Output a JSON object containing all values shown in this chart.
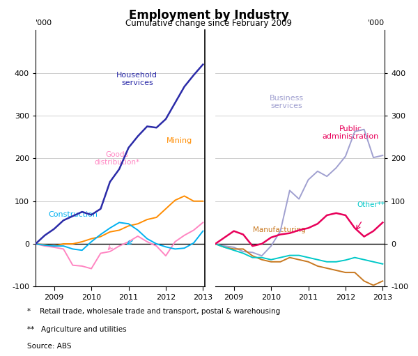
{
  "title": "Employment by Industry",
  "subtitle": "Cumulative change since February 2009",
  "ylabel": "'000",
  "footnote1": "*    Retail trade, wholesale trade and transport, postal & warehousing",
  "footnote2": "**   Agriculture and utilities",
  "footnote3": "Source: ABS",
  "ylim": [
    -100,
    500
  ],
  "yticks": [
    -100,
    0,
    100,
    200,
    300,
    400
  ],
  "left_panel": {
    "household_services": {
      "color": "#2b2ba8",
      "label": "Household\nservices",
      "x": [
        2008.5,
        2008.75,
        2009.0,
        2009.25,
        2009.5,
        2009.75,
        2010.0,
        2010.25,
        2010.5,
        2010.75,
        2011.0,
        2011.25,
        2011.5,
        2011.75,
        2012.0,
        2012.25,
        2012.5,
        2012.75,
        2013.0
      ],
      "y": [
        0,
        20,
        35,
        55,
        65,
        75,
        68,
        82,
        145,
        175,
        225,
        252,
        275,
        272,
        292,
        330,
        368,
        395,
        420
      ]
    },
    "goods_distribution": {
      "color": "#ff85c2",
      "label": "Goods\ndistribution*",
      "x": [
        2008.5,
        2008.75,
        2009.0,
        2009.25,
        2009.5,
        2009.75,
        2010.0,
        2010.25,
        2010.5,
        2010.75,
        2011.0,
        2011.25,
        2011.5,
        2011.75,
        2012.0,
        2012.25,
        2012.5,
        2012.75,
        2013.0
      ],
      "y": [
        0,
        -5,
        -8,
        -12,
        -50,
        -52,
        -58,
        -22,
        -18,
        -5,
        5,
        18,
        5,
        -5,
        -28,
        5,
        20,
        32,
        50
      ]
    },
    "mining": {
      "color": "#ff8c00",
      "label": "Mining",
      "x": [
        2008.5,
        2008.75,
        2009.0,
        2009.25,
        2009.5,
        2009.75,
        2010.0,
        2010.25,
        2010.5,
        2010.75,
        2011.0,
        2011.25,
        2011.5,
        2011.75,
        2012.0,
        2012.25,
        2012.5,
        2012.75,
        2013.0
      ],
      "y": [
        0,
        -2,
        -5,
        0,
        0,
        5,
        12,
        17,
        28,
        32,
        42,
        47,
        57,
        62,
        82,
        102,
        112,
        100,
        100
      ]
    },
    "construction": {
      "color": "#00b0f0",
      "label": "Construction",
      "x": [
        2008.5,
        2008.75,
        2009.0,
        2009.25,
        2009.5,
        2009.75,
        2010.0,
        2010.25,
        2010.5,
        2010.75,
        2011.0,
        2011.25,
        2011.5,
        2011.75,
        2012.0,
        2012.25,
        2012.5,
        2012.75,
        2013.0
      ],
      "y": [
        0,
        -3,
        -5,
        -5,
        -12,
        -15,
        5,
        22,
        37,
        50,
        47,
        32,
        12,
        0,
        -7,
        -12,
        -10,
        2,
        30
      ]
    }
  },
  "right_panel": {
    "business_services": {
      "color": "#a0a0d0",
      "label": "Business\nservices",
      "x": [
        2008.5,
        2008.75,
        2009.0,
        2009.25,
        2009.5,
        2009.75,
        2010.0,
        2010.25,
        2010.5,
        2010.75,
        2011.0,
        2011.25,
        2011.5,
        2011.75,
        2012.0,
        2012.25,
        2012.5,
        2012.75,
        2013.0
      ],
      "y": [
        0,
        -5,
        -8,
        -18,
        -20,
        -28,
        -5,
        30,
        125,
        105,
        150,
        170,
        158,
        178,
        205,
        263,
        268,
        202,
        207
      ]
    },
    "public_administration": {
      "color": "#e8005a",
      "label": "Public\nadministration",
      "x": [
        2008.5,
        2008.75,
        2009.0,
        2009.25,
        2009.5,
        2009.75,
        2010.0,
        2010.25,
        2010.5,
        2010.75,
        2011.0,
        2011.25,
        2011.5,
        2011.75,
        2012.0,
        2012.25,
        2012.5,
        2012.75,
        2013.0
      ],
      "y": [
        0,
        15,
        30,
        22,
        -5,
        0,
        15,
        22,
        25,
        32,
        37,
        47,
        67,
        72,
        67,
        37,
        17,
        30,
        50
      ]
    },
    "manufacturing": {
      "color": "#c87820",
      "label": "Manufacturing",
      "x": [
        2008.5,
        2008.75,
        2009.0,
        2009.25,
        2009.5,
        2009.75,
        2010.0,
        2010.25,
        2010.5,
        2010.75,
        2011.0,
        2011.25,
        2011.5,
        2011.75,
        2012.0,
        2012.25,
        2012.5,
        2012.75,
        2013.0
      ],
      "y": [
        0,
        -8,
        -12,
        -12,
        -28,
        -37,
        -42,
        -42,
        -32,
        -37,
        -42,
        -52,
        -57,
        -62,
        -67,
        -67,
        -87,
        -97,
        -87
      ]
    },
    "other": {
      "color": "#00c8c8",
      "label": "Other**",
      "x": [
        2008.5,
        2008.75,
        2009.0,
        2009.25,
        2009.5,
        2009.75,
        2010.0,
        2010.25,
        2010.5,
        2010.75,
        2011.0,
        2011.25,
        2011.5,
        2011.75,
        2012.0,
        2012.25,
        2012.5,
        2012.75,
        2013.0
      ],
      "y": [
        0,
        -8,
        -15,
        -22,
        -32,
        -32,
        -37,
        -32,
        -27,
        -27,
        -32,
        -37,
        -42,
        -42,
        -38,
        -32,
        -37,
        -42,
        -47
      ]
    }
  }
}
